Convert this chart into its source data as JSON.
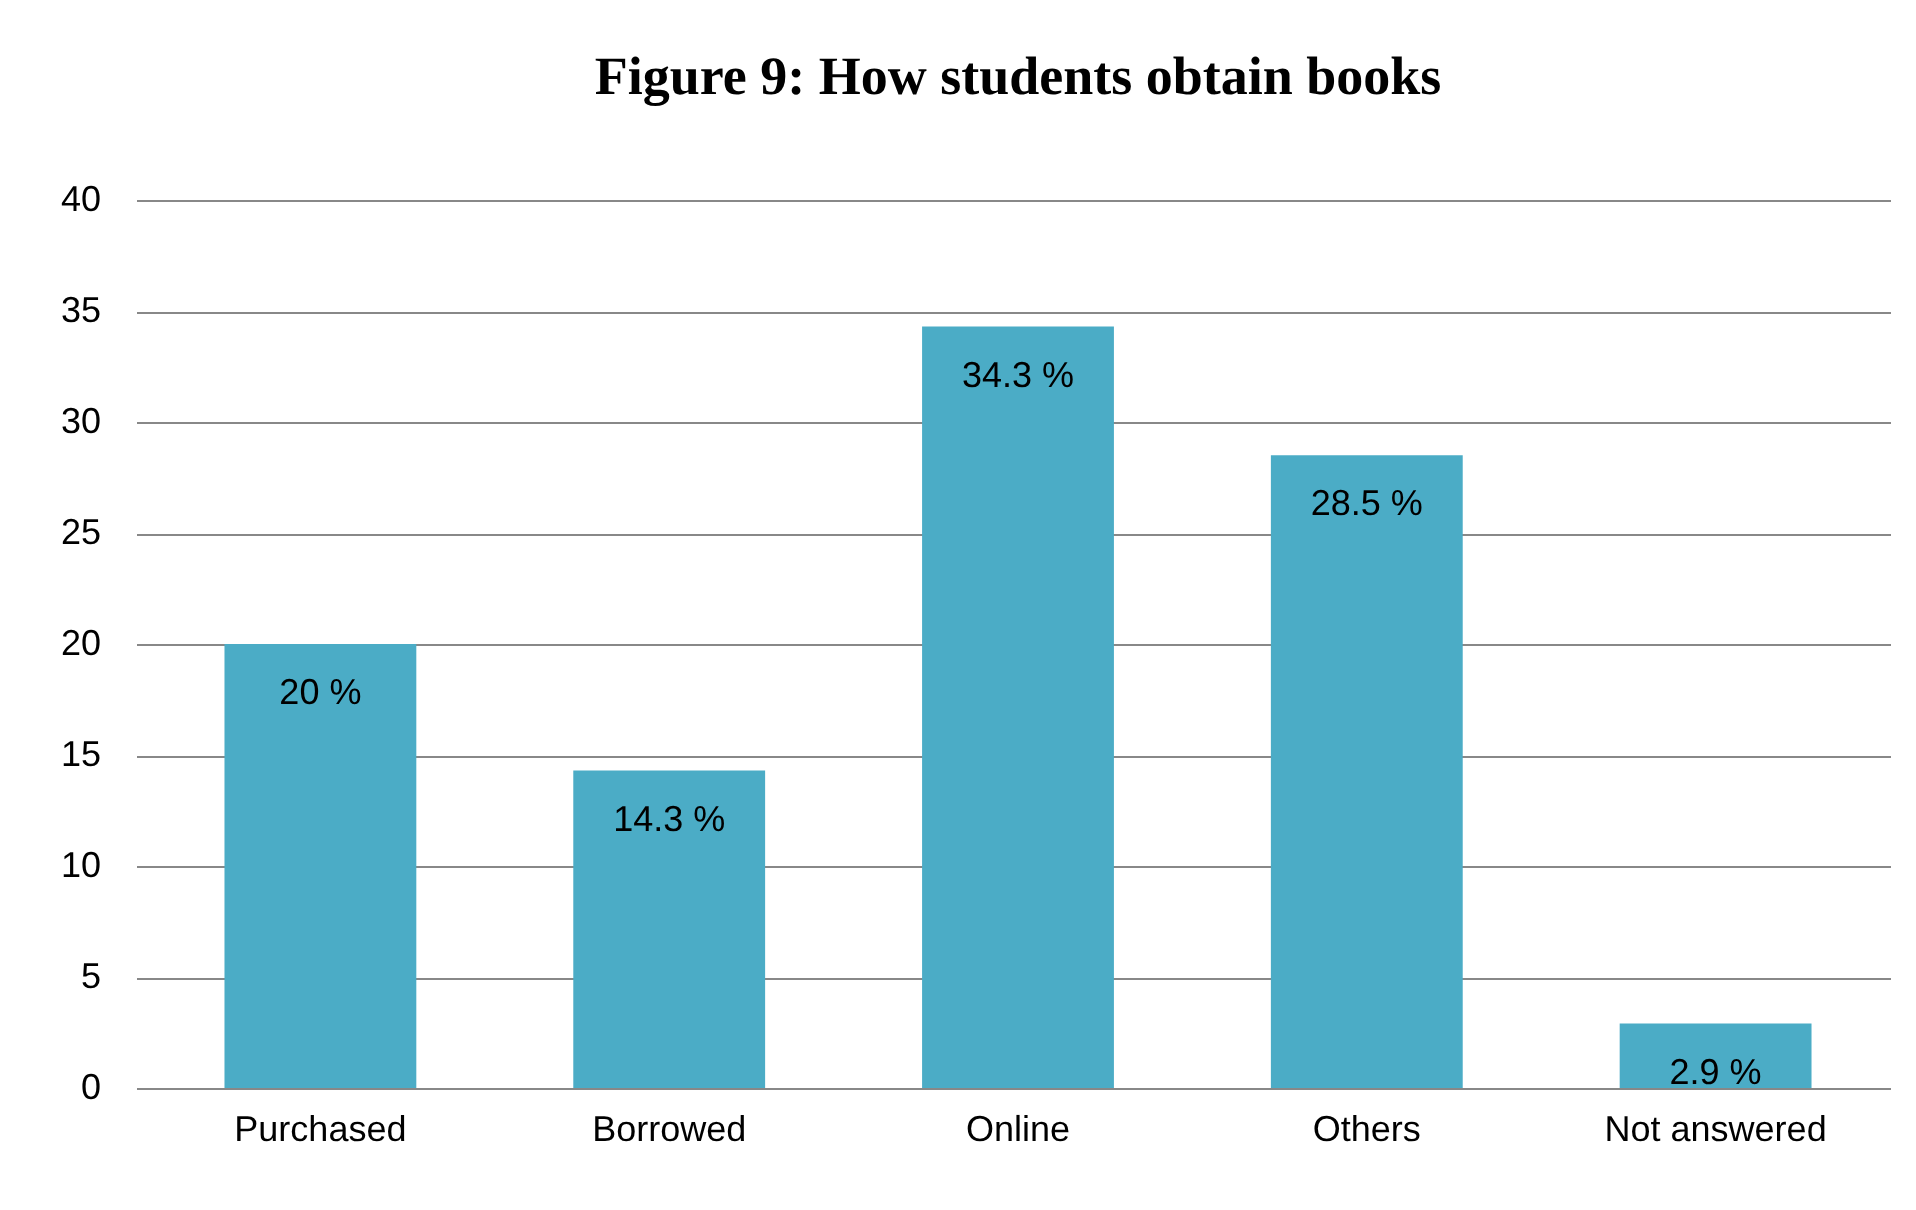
{
  "chart_data": {
    "type": "bar",
    "title": "Figure 9: How students obtain books",
    "categories": [
      "Purchased",
      "Borrowed",
      "Online",
      "Others",
      "Not answered"
    ],
    "values": [
      20,
      14.3,
      34.3,
      28.5,
      2.9
    ],
    "value_labels": [
      "20 %",
      "14.3 %",
      "34.3 %",
      "28.5 %",
      "2.9 %"
    ],
    "color": "#4bacc6",
    "ylim": [
      0,
      40
    ],
    "yticks": [
      0,
      5,
      10,
      15,
      20,
      25,
      30,
      35,
      40
    ],
    "grid": "y"
  }
}
